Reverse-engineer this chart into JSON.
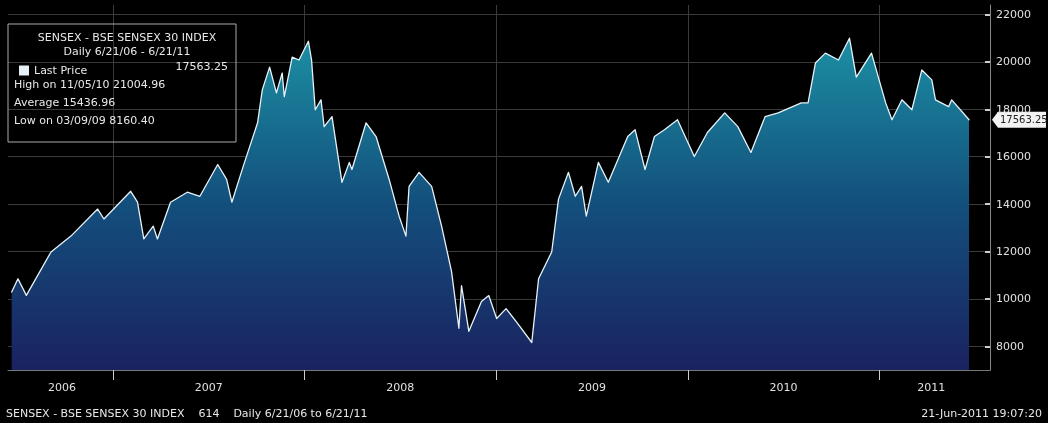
{
  "chart_data": {
    "type": "area",
    "title": "SENSEX - BSE SENSEX 30 INDEX",
    "subtitle": "Daily 6/21/06 - 6/21/11",
    "x": [
      "2006-06-21",
      "2006-07-03",
      "2006-07-19",
      "2006-09-04",
      "2006-10-12",
      "2006-12-02",
      "2006-12-14",
      "2007-02-03",
      "2007-02-16",
      "2007-02-28",
      "2007-03-18",
      "2007-03-26",
      "2007-04-20",
      "2007-05-22",
      "2007-06-15",
      "2007-07-19",
      "2007-08-05",
      "2007-08-15",
      "2007-09-05",
      "2007-10-03",
      "2007-10-12",
      "2007-10-26",
      "2007-11-08",
      "2007-11-19",
      "2007-11-23",
      "2007-12-08",
      "2007-12-21",
      "2008-01-08",
      "2008-01-14",
      "2008-01-21",
      "2008-02-01",
      "2008-02-07",
      "2008-02-22",
      "2008-03-12",
      "2008-03-26",
      "2008-03-31",
      "2008-04-27",
      "2008-05-16",
      "2008-06-10",
      "2008-06-29",
      "2008-07-12",
      "2008-07-18",
      "2008-08-06",
      "2008-08-30",
      "2008-09-18",
      "2008-10-07",
      "2008-10-21",
      "2008-10-26",
      "2008-11-09",
      "2008-12-03",
      "2008-12-17",
      "2009-01-01",
      "2009-01-19",
      "2009-02-07",
      "2009-03-09",
      "2009-03-22",
      "2009-04-16",
      "2009-04-29",
      "2009-05-18",
      "2009-05-31",
      "2009-06-12",
      "2009-06-21",
      "2009-07-14",
      "2009-08-02",
      "2009-09-08",
      "2009-09-22",
      "2009-10-11",
      "2009-10-29",
      "2009-11-17",
      "2009-12-12",
      "2010-01-13",
      "2010-02-07",
      "2010-03-12",
      "2010-04-06",
      "2010-05-01",
      "2010-05-28",
      "2010-06-22",
      "2010-08-05",
      "2010-08-18",
      "2010-09-01",
      "2010-09-20",
      "2010-10-15",
      "2010-11-05",
      "2010-11-18",
      "2010-12-17",
      "2011-01-13",
      "2011-01-25",
      "2011-02-13",
      "2011-03-04",
      "2011-03-23",
      "2011-04-11",
      "2011-04-18",
      "2011-05-13",
      "2011-05-19",
      "2011-06-21"
    ],
    "series": [
      {
        "name": "Last Price",
        "color": "#e6f2f7",
        "values": [
          10290,
          10850,
          10150,
          11980,
          12650,
          13790,
          13370,
          14540,
          14080,
          12530,
          13070,
          12530,
          14080,
          14500,
          14330,
          15670,
          15040,
          14080,
          15550,
          17430,
          18820,
          19780,
          18690,
          19530,
          18530,
          20200,
          20080,
          20870,
          20080,
          17980,
          18400,
          17270,
          17690,
          14920,
          15760,
          15460,
          17430,
          16850,
          15040,
          13490,
          12650,
          14750,
          15340,
          14750,
          13070,
          11150,
          8760,
          10560,
          8630,
          9890,
          10140,
          9170,
          9590,
          9050,
          8160,
          10850,
          11980,
          14210,
          15340,
          14330,
          14750,
          13490,
          15760,
          14920,
          16850,
          17140,
          15460,
          16850,
          17140,
          17560,
          16010,
          17020,
          17850,
          17270,
          16180,
          17690,
          17850,
          18270,
          18270,
          19950,
          20370,
          20080,
          21000,
          19360,
          20370,
          18270,
          17560,
          18400,
          17980,
          19660,
          19240,
          18400,
          18110,
          18400,
          17560
        ]
      }
    ],
    "xlim": [
      "2006-06-14",
      "2011-07-31"
    ],
    "xticks": [
      {
        "value": "2006-09-25",
        "label": "2006"
      },
      {
        "value": "2007-01-01",
        "label": null
      },
      {
        "value": "2007-07-02",
        "label": "2007"
      },
      {
        "value": "2008-01-01",
        "label": null
      },
      {
        "value": "2008-07-01",
        "label": "2008"
      },
      {
        "value": "2009-01-01",
        "label": null
      },
      {
        "value": "2009-07-02",
        "label": "2009"
      },
      {
        "value": "2010-01-01",
        "label": null
      },
      {
        "value": "2010-07-02",
        "label": "2010"
      },
      {
        "value": "2011-01-01",
        "label": null
      },
      {
        "value": "2011-04-10",
        "label": "2011"
      }
    ],
    "ylim": [
      7000,
      22400
    ],
    "yticks": [
      8000,
      10000,
      12000,
      14000,
      16000,
      18000,
      20000,
      22000
    ],
    "grid": true,
    "legend": "top left",
    "annotations": [
      "17563.25",
      "High on 11/05/10 21004.96",
      "Average 15436.96",
      "Low on 03/09/09 8160.40",
      "SENSEX - BSE SENSEX 30 INDEX    614    Daily 6/21/06 to 6/21/11",
      "21-Jun-2011 19:07:20",
      "17563.25"
    ]
  }
}
